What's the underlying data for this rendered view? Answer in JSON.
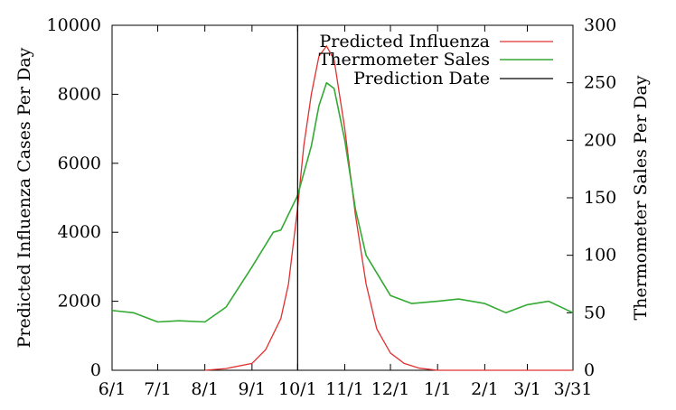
{
  "chart_data": {
    "type": "line",
    "xlabel": "",
    "ylabel": "Predicted Influenza Cases Per Day",
    "y2label": "Thermometer Sales Per Day",
    "x_ticks": [
      "6/1",
      "7/1",
      "8/1",
      "9/1",
      "10/1",
      "11/1",
      "12/1",
      "1/1",
      "2/1",
      "3/1",
      "3/31"
    ],
    "xlim": [
      "6/1",
      "3/31"
    ],
    "ylim": [
      0,
      10000
    ],
    "y_ticks": [
      0,
      2000,
      4000,
      6000,
      8000,
      10000
    ],
    "y2lim": [
      0,
      300
    ],
    "y2_ticks": [
      0,
      50,
      100,
      150,
      200,
      250,
      300
    ],
    "grid": false,
    "legend_position": "top-right",
    "colors": {
      "influenza": "#e03030",
      "sales": "#33aa33",
      "prediction": "#000000"
    },
    "prediction_date": "10/1",
    "series": [
      {
        "name": "Predicted Influenza",
        "axis": "left",
        "x": [
          "8/1",
          "8/15",
          "9/1",
          "9/10",
          "9/20",
          "9/25",
          "10/1",
          "10/5",
          "10/10",
          "10/15",
          "10/20",
          "10/25",
          "11/1",
          "11/8",
          "11/15",
          "11/22",
          "12/1",
          "12/10",
          "12/20",
          "1/1",
          "1/15",
          "2/1",
          "3/1",
          "3/31"
        ],
        "y": [
          0,
          50,
          200,
          600,
          1500,
          2500,
          4700,
          6500,
          8000,
          9100,
          9400,
          9000,
          7000,
          4500,
          2500,
          1200,
          500,
          200,
          60,
          0,
          0,
          0,
          0,
          0
        ]
      },
      {
        "name": "Thermometer Sales",
        "axis": "right",
        "x": [
          "6/1",
          "6/15",
          "7/1",
          "7/15",
          "8/1",
          "8/15",
          "9/1",
          "9/15",
          "9/20",
          "10/1",
          "10/10",
          "10/15",
          "10/20",
          "10/25",
          "11/1",
          "11/8",
          "11/15",
          "12/1",
          "12/15",
          "1/1",
          "1/15",
          "2/1",
          "2/15",
          "3/1",
          "3/15",
          "3/31"
        ],
        "y": [
          52,
          50,
          42,
          43,
          42,
          55,
          90,
          120,
          122,
          152,
          195,
          230,
          250,
          245,
          200,
          140,
          100,
          65,
          58,
          60,
          62,
          58,
          50,
          57,
          60,
          50
        ]
      },
      {
        "name": "Prediction Date",
        "type": "vline",
        "x": "10/1"
      }
    ]
  }
}
